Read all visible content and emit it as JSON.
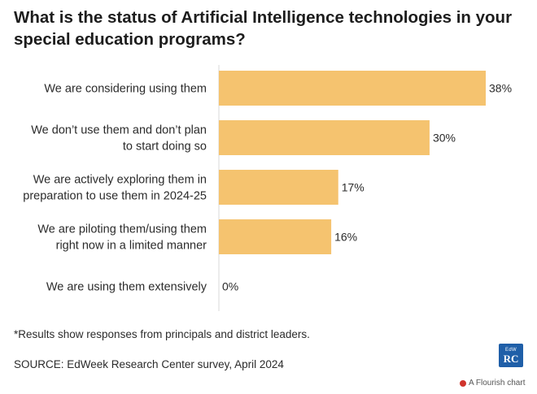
{
  "chart_data": {
    "type": "bar",
    "orientation": "horizontal",
    "title": "What is the status of Artificial Intelligence technologies in your special education programs?",
    "categories": [
      [
        "We are considering using them"
      ],
      [
        "We don’t use them and don’t plan",
        "to start doing so"
      ],
      [
        "We are actively exploring them in",
        "preparation to use them in 2024-25"
      ],
      [
        "We are piloting them/using them",
        "right now in a limited manner"
      ],
      [
        "We are using them extensively"
      ]
    ],
    "values": [
      38,
      30,
      17,
      16,
      0
    ],
    "value_labels": [
      "38%",
      "30%",
      "17%",
      "16%",
      "0%"
    ],
    "xlim": [
      0,
      38
    ],
    "bar_color": "#f5c36f",
    "axis_color": "#d9d9d9",
    "grid": false,
    "legend": "none"
  },
  "footnote": "*Results show responses from principals and district leaders.",
  "source": "SOURCE: EdWeek Research Center survey, April 2024",
  "logo": {
    "top_text": "EdW",
    "main_text": "RC",
    "color": "#1f5fa8"
  },
  "flourish_label": "A Flourish chart"
}
